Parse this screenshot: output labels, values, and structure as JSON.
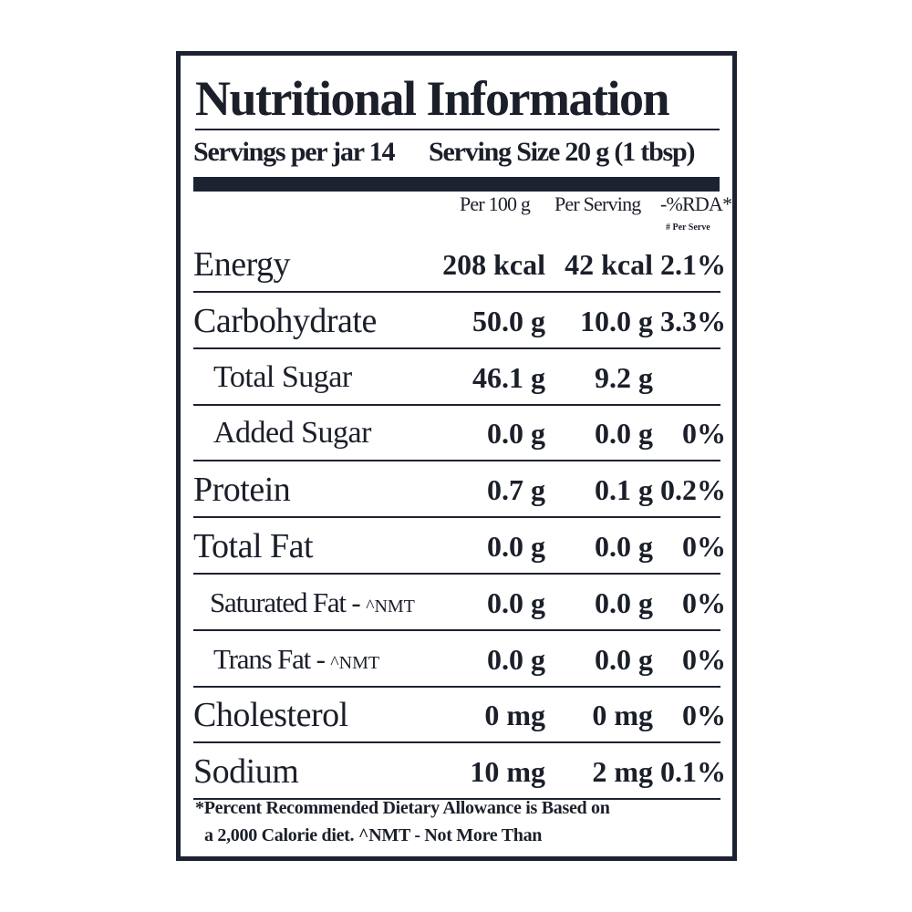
{
  "title": "Nutritional Information",
  "servings": {
    "per_jar": "Servings per jar 14",
    "serving_size": "Serving Size  20 g (1 tbsp)"
  },
  "columns": {
    "per100": "Per 100 g",
    "perServing": "Per Serving",
    "rda": "-%RDA*",
    "rda_note": "# Per Serve"
  },
  "rows": [
    {
      "name": "Energy",
      "nmt": "",
      "per100": "208 kcal",
      "perServing": "42 kcal",
      "rda": "2.1%"
    },
    {
      "name": "Carbohydrate",
      "nmt": "",
      "per100": "50.0 g",
      "perServing": "10.0 g",
      "rda": "3.3%"
    },
    {
      "name": "Total Sugar",
      "nmt": "",
      "per100": "46.1 g",
      "perServing": "9.2 g",
      "rda": ""
    },
    {
      "name": "Added Sugar",
      "nmt": "",
      "per100": "0.0 g",
      "perServing": "0.0 g",
      "rda": "0%"
    },
    {
      "name": "Protein",
      "nmt": "",
      "per100": "0.7 g",
      "perServing": "0.1 g",
      "rda": "0.2%"
    },
    {
      "name": "Total Fat",
      "nmt": "",
      "per100": "0.0 g",
      "perServing": "0.0 g",
      "rda": "0%"
    },
    {
      "name": "Saturated Fat - ",
      "nmt": "^NMT",
      "per100": "0.0 g",
      "perServing": "0.0 g",
      "rda": "0%"
    },
    {
      "name": "Trans Fat - ",
      "nmt": "^NMT",
      "per100": "0.0 g",
      "perServing": "0.0 g",
      "rda": "0%"
    },
    {
      "name": "Cholesterol",
      "nmt": "",
      "per100": "0 mg",
      "perServing": "0 mg",
      "rda": "0%"
    },
    {
      "name": "Sodium",
      "nmt": "",
      "per100": "10 mg",
      "perServing": "2 mg",
      "rda": "0.1%"
    }
  ],
  "footnote": {
    "line1": "*Percent Recommended Dietary Allowance is Based on",
    "line2": "a 2,000 Calorie diet. ^NMT - Not More Than"
  }
}
